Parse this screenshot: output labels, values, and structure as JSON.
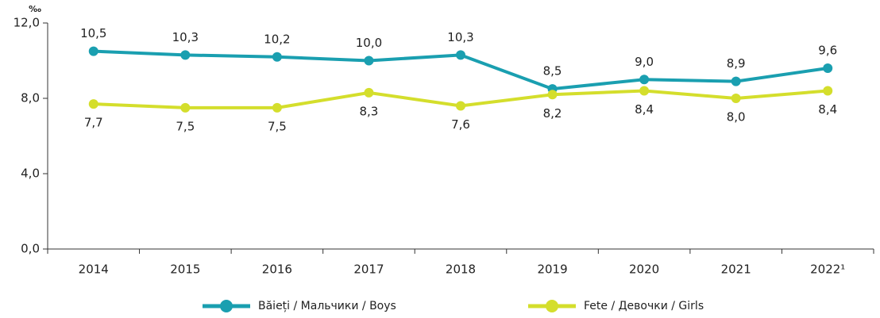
{
  "chart_data": {
    "type": "line",
    "y_label": "‰",
    "categories": [
      "2014",
      "2015",
      "2016",
      "2017",
      "2018",
      "2019",
      "2020",
      "2021",
      "2022¹"
    ],
    "series": [
      {
        "name": "Băieți / Мальчики / Boys",
        "color": "#1a9fb0",
        "values": [
          10.5,
          10.3,
          10.2,
          10.0,
          10.3,
          8.5,
          9.0,
          8.9,
          9.6
        ],
        "value_labels": [
          "10,5",
          "10,3",
          "10,2",
          "10,0",
          "10,3",
          "8,5",
          "9,0",
          "8,9",
          "9,6"
        ]
      },
      {
        "name": "Fete / Девочки / Girls",
        "color": "#d4de2c",
        "values": [
          7.7,
          7.5,
          7.5,
          8.3,
          7.6,
          8.2,
          8.4,
          8.0,
          8.4
        ],
        "value_labels": [
          "7,7",
          "7,5",
          "7,5",
          "8,3",
          "7,6",
          "8,2",
          "8,4",
          "8,0",
          "8,4"
        ]
      }
    ],
    "ylim": [
      0,
      12
    ],
    "yticks": [
      {
        "value": 0,
        "label": "0,0"
      },
      {
        "value": 4,
        "label": "4,0"
      },
      {
        "value": 8,
        "label": "8,0"
      },
      {
        "value": 12,
        "label": "12,0"
      }
    ],
    "grid": false
  }
}
